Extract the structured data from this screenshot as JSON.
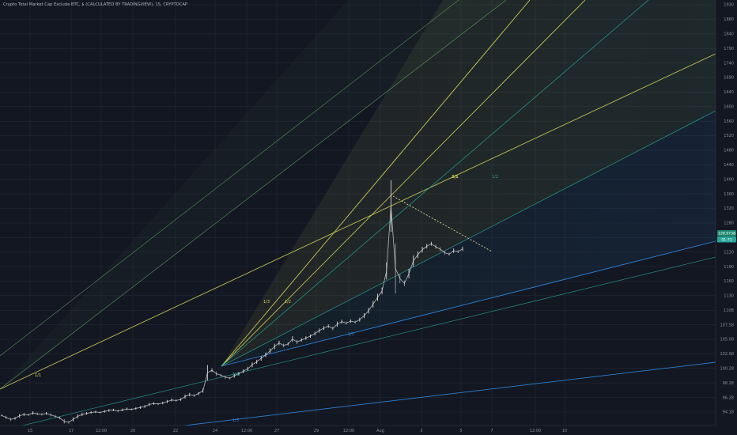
{
  "header": {
    "title": "Crypto Total Market Cap Exclude BTC, $ (CALCULATED BY TRADINGVIEW), 1S, CRYPTOCAP"
  },
  "colors": {
    "background": "#131722",
    "grid": "#232835",
    "candle_up": "#d8d8d8",
    "candle_down": "#9a9a9a",
    "fan_yellow": "#d9d95a",
    "fan_green": "#7fc97f",
    "fan_teal": "#26a69a",
    "fan_blue": "#2e86de",
    "resistance": "#d9d9a0",
    "price_badge": "#1f8a70",
    "price_badge_2": "#26a69a"
  },
  "chart_data": {
    "type": "candlestick",
    "title": "Crypto Total Market Cap Exclude BTC, $ (CALCULATED BY TRADINGVIEW), 1S, CRYPTOCAP",
    "x_ticks": [
      "15",
      "17",
      "12:00",
      "20",
      "22",
      "24",
      "12:00",
      "27",
      "29",
      "12:00",
      "Aug",
      "3",
      "5",
      "7",
      "12:00",
      "10"
    ],
    "y_ticks": [
      "94.18",
      "96.28",
      "98.28",
      "100.28",
      "102.68",
      "105.08",
      "107.58",
      "110B",
      "1130",
      "1160",
      "1190",
      "1220",
      "1250",
      "1280",
      "1320",
      "1360",
      "1400",
      "1440",
      "1480",
      "1520",
      "1560",
      "1600",
      "1640",
      "1690",
      "1740",
      "1790",
      "1840",
      "1880",
      "1930"
    ],
    "price_labels": [
      "128.9738",
      "01:73"
    ],
    "series": [
      {
        "values": [
          95.4,
          95.0,
          94.6,
          94.8,
          95.3,
          95.6,
          95.5,
          95.9,
          95.7,
          95.6,
          95.8,
          95.5,
          95.2,
          94.9,
          94.2,
          94.0,
          94.6,
          95.2,
          95.6,
          95.8,
          96.0,
          96.1,
          96.0,
          96.2,
          96.4,
          96.5,
          96.3,
          96.5,
          96.7,
          96.6,
          96.8,
          97.0,
          97.2,
          97.6,
          97.8,
          97.7,
          97.9,
          98.2,
          98.5,
          98.4,
          98.6,
          99.2,
          99.6,
          99.4,
          99.8,
          100.4,
          104.0,
          104.5,
          103.8,
          103.5,
          103.1,
          102.9,
          103.4,
          103.8,
          104.3,
          104.8,
          105.6,
          106.2,
          106.9,
          107.6,
          108.4,
          109.3,
          110.0,
          109.5,
          109.8,
          110.8,
          110.2,
          110.6,
          111.0,
          111.4,
          111.9,
          112.5,
          113.0,
          113.4,
          112.9,
          113.8,
          114.3,
          114.0,
          114.4,
          114.2,
          114.7,
          115.5,
          116.5,
          117.8,
          119.2,
          120.5,
          124.5,
          137.6,
          125.0,
          123.0,
          122.0,
          124.0,
          126.5,
          127.8,
          128.8,
          129.5,
          130.0,
          129.4,
          128.9,
          128.2,
          127.9,
          128.6,
          128.4,
          128.97
        ]
      }
    ],
    "fan_labels": [
      "1/3",
      "1/2",
      "1/1",
      "1/2",
      "1/3",
      "1/1",
      "1/1",
      "1/3",
      "1/1"
    ]
  }
}
